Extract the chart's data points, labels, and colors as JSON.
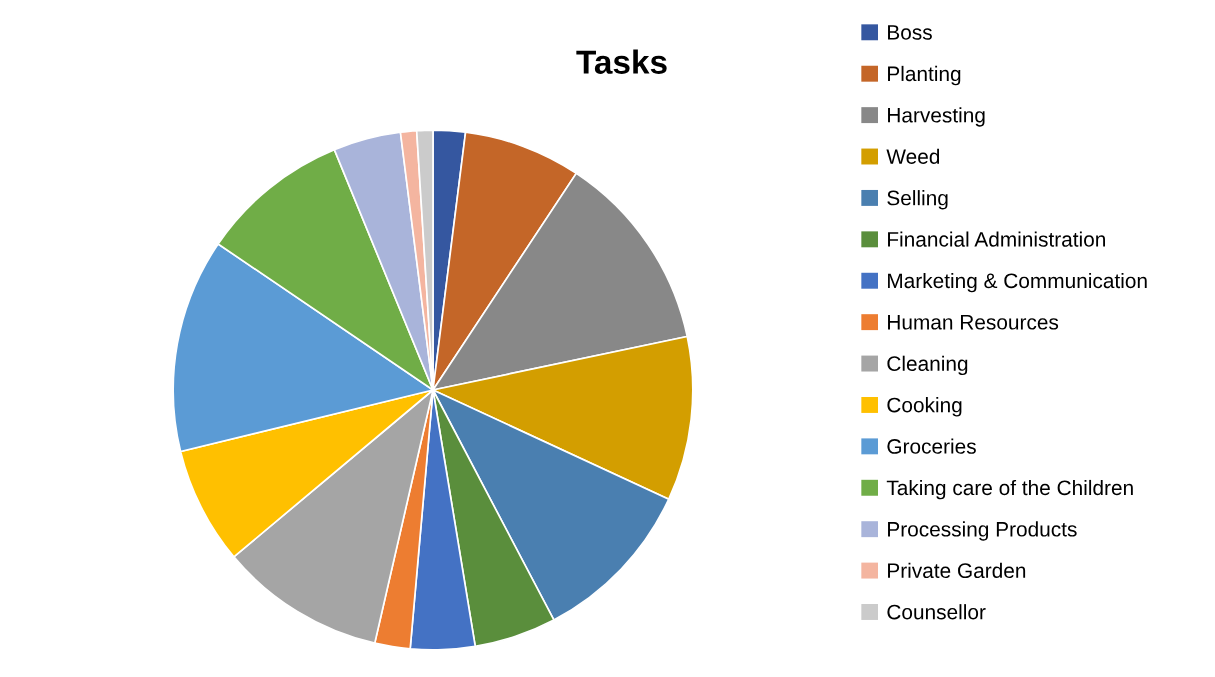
{
  "chart_data": {
    "type": "pie",
    "title": "Tasks",
    "categories": [
      "Boss",
      "Planting",
      "Harvesting",
      "Weed",
      "Selling",
      "Financial Administration",
      "Marketing & Communication",
      "Human Resources",
      "Cleaning",
      "Cooking",
      "Groceries",
      "Taking care of the Children",
      "Processing Products",
      "Private Garden",
      "Counsellor"
    ],
    "values": [
      2,
      7.3,
      12.4,
      10.2,
      10.4,
      5.1,
      4,
      2.2,
      10.3,
      7.3,
      13.3,
      9.3,
      4.2,
      1,
      1
    ],
    "colors": [
      "#3557a0",
      "#c46628",
      "#888888",
      "#d39e00",
      "#4a7fb0",
      "#5a8e3c",
      "#4472c4",
      "#ed7d31",
      "#a5a5a5",
      "#ffc000",
      "#5b9bd5",
      "#70ad47",
      "#a9b4da",
      "#f4b5a0",
      "#cbcbcb"
    ],
    "legend": "right"
  }
}
